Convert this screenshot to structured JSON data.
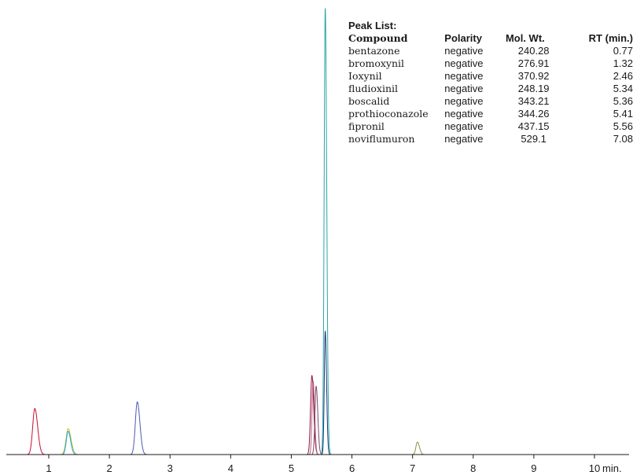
{
  "chart_data": {
    "type": "line",
    "title": "",
    "xlabel": "",
    "ylabel": "",
    "x_unit_label": "min.",
    "xlim": [
      0.3,
      10.1
    ],
    "ylim": [
      0,
      100
    ],
    "x_ticks": [
      {
        "value": 1,
        "label": "1"
      },
      {
        "value": 2,
        "label": "2"
      },
      {
        "value": 3,
        "label": "3"
      },
      {
        "value": 4,
        "label": "4"
      },
      {
        "value": 5,
        "label": "5"
      },
      {
        "value": 6,
        "label": "6"
      },
      {
        "value": 7,
        "label": "7"
      },
      {
        "value": 8,
        "label": "8"
      },
      {
        "value": 9,
        "label": "9"
      },
      {
        "value": 10,
        "label": "10"
      }
    ],
    "grid": false,
    "series": [
      {
        "rt": 0.77,
        "height": 10.3,
        "width": 0.035,
        "color": "#c8102e"
      },
      {
        "rt": 1.32,
        "height": 5.8,
        "width": 0.035,
        "color": "#b5cc18"
      },
      {
        "rt": 1.32,
        "height": 5.2,
        "width": 0.03,
        "color": "#2a9df4"
      },
      {
        "rt": 2.46,
        "height": 11.8,
        "width": 0.032,
        "color": "#4a5ab0"
      },
      {
        "rt": 5.34,
        "height": 17.7,
        "width": 0.022,
        "color": "#8b1a3a"
      },
      {
        "rt": 5.36,
        "height": 16.5,
        "width": 0.018,
        "color": "#c06080"
      },
      {
        "rt": 5.41,
        "height": 15.3,
        "width": 0.02,
        "color": "#7a4a6a"
      },
      {
        "rt": 5.56,
        "height": 100,
        "width": 0.018,
        "color": "#2aa5a5"
      },
      {
        "rt": 5.56,
        "height": 27.6,
        "width": 0.016,
        "color": "#1a3a7a"
      },
      {
        "rt": 7.08,
        "height": 2.8,
        "width": 0.025,
        "color": "#7a9a3a"
      }
    ]
  },
  "peak_list": {
    "title": "Peak List:",
    "headers": {
      "compound": "Compound",
      "polarity": "Polarity",
      "mol_wt": "Mol. Wt.",
      "rt": "RT (min.)"
    },
    "rows": [
      {
        "compound": "bentazone",
        "polarity": "negative",
        "mol_wt": "240.28",
        "rt": "0.77"
      },
      {
        "compound": "bromoxynil",
        "polarity": "negative",
        "mol_wt": "276.91",
        "rt": "1.32"
      },
      {
        "compound": "Ioxynil",
        "polarity": "negative",
        "mol_wt": "370.92",
        "rt": "2.46"
      },
      {
        "compound": "fludioxinil",
        "polarity": "negative",
        "mol_wt": "248.19",
        "rt": "5.34"
      },
      {
        "compound": "boscalid",
        "polarity": "negative",
        "mol_wt": "343.21",
        "rt": "5.36"
      },
      {
        "compound": "prothioconazole",
        "polarity": "negative",
        "mol_wt": "344.26",
        "rt": "5.41"
      },
      {
        "compound": "fipronil",
        "polarity": "negative",
        "mol_wt": "437.15",
        "rt": "5.56"
      },
      {
        "compound": "noviflumuron",
        "polarity": "negative",
        "mol_wt": "529.1",
        "rt": "7.08"
      }
    ]
  }
}
